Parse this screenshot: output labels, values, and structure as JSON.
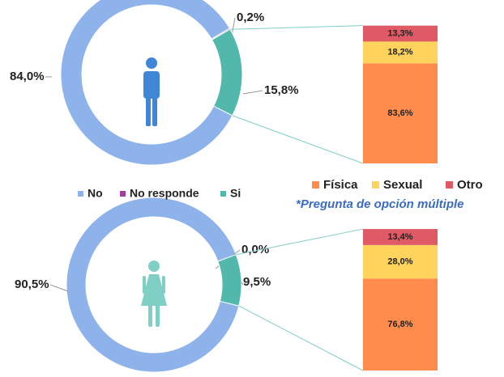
{
  "chart_data": [
    {
      "type": "pie",
      "donut": true,
      "categories": [
        "No",
        "No responde",
        "Si"
      ],
      "colors": [
        "#8db3ea",
        "#a0409c",
        "#52b8ac"
      ],
      "series": [
        {
          "values": [
            84.0,
            0.2,
            15.8
          ],
          "value_labels": [
            "84,0%",
            "0,2%",
            "15,8%"
          ]
        },
        {
          "values": [
            90.5,
            0.0,
            9.5
          ],
          "value_labels": [
            "90,5%",
            "0,0%",
            "9,5%"
          ]
        }
      ]
    },
    {
      "type": "bar",
      "stacked": true,
      "note": "*Pregunta de opción múltiple",
      "series": [
        {
          "name": "Física",
          "color": "#ff8c4c",
          "values": [
            83.6,
            76.8
          ],
          "value_labels": [
            "83,6%",
            "76,8%"
          ]
        },
        {
          "name": "Sexual",
          "color": "#ffd35c",
          "values": [
            18.2,
            28.0
          ],
          "value_labels": [
            "18,2%",
            "28,0%"
          ]
        },
        {
          "name": "Otro",
          "color": "#e05a66",
          "values": [
            13.3,
            13.4
          ],
          "value_labels": [
            "13,3%",
            "13,4%"
          ]
        }
      ]
    }
  ]
}
